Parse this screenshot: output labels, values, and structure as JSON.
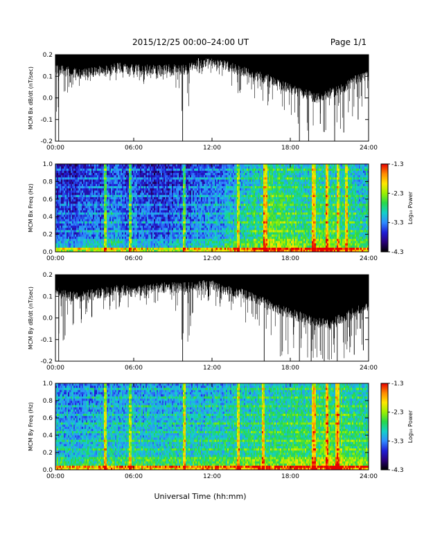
{
  "header": {
    "title": "2015/12/25  00:00–24:00 UT",
    "page": "Page 1/1"
  },
  "footer": {
    "xlabel": "Universal Time (hh:mm)"
  },
  "colors": {
    "trace": "#000000",
    "colormap": [
      "#000000",
      "#2a007a",
      "#1f1fd6",
      "#2f8cff",
      "#14d0c8",
      "#27d84a",
      "#9bf000",
      "#ffe600",
      "#ff8a00",
      "#e60000"
    ]
  },
  "chart_data": [
    {
      "type": "line",
      "ylabel": "MCM Bx dB/dt (nT/sec)",
      "xlim": [
        0,
        24
      ],
      "ylim": [
        -0.2,
        0.2
      ],
      "xticks": [
        "00:00",
        "06:00",
        "12:00",
        "18:00",
        "24:00"
      ],
      "yticks": [
        "0.2",
        "0.1",
        "0.0",
        "-0.1",
        "-0.2"
      ],
      "envelope": {
        "hours": [
          0,
          1,
          2,
          3,
          4,
          5,
          6,
          7,
          8,
          9,
          10,
          11,
          12,
          13,
          14,
          15,
          16,
          17,
          18,
          19,
          20,
          21,
          22,
          23,
          24
        ],
        "typical_low": [
          0.13,
          0.12,
          0.11,
          0.12,
          0.13,
          0.14,
          0.13,
          0.13,
          0.13,
          0.13,
          0.13,
          0.16,
          0.16,
          0.15,
          0.13,
          0.11,
          0.09,
          0.07,
          0.04,
          0.02,
          0.0,
          0.02,
          0.04,
          0.08,
          0.1
        ],
        "spike_min": [
          -0.2,
          0.04,
          0.05,
          0.06,
          0.08,
          0.07,
          0.08,
          0.06,
          0.08,
          0.1,
          -0.2,
          0.1,
          0.1,
          0.08,
          0.02,
          0.0,
          -0.03,
          -0.05,
          -0.12,
          -0.2,
          -0.2,
          -0.15,
          -0.2,
          -0.1,
          -0.05
        ]
      },
      "deep_spikes": [
        [
          0.25,
          -0.2
        ],
        [
          9.75,
          -0.2
        ],
        [
          18.7,
          -0.2
        ],
        [
          19.4,
          -0.2
        ],
        [
          20.3,
          -0.12
        ],
        [
          21.4,
          -0.2
        ],
        [
          22.1,
          -0.16
        ],
        [
          23.2,
          -0.1
        ]
      ]
    },
    {
      "type": "heatmap",
      "ylabel": "MCM Bx Freq (Hz)",
      "xlim": [
        0,
        24
      ],
      "ylim": [
        0,
        1.0
      ],
      "xticks": [
        "00:00",
        "06:00",
        "12:00",
        "18:00",
        "24:00"
      ],
      "yticks": [
        "1.0",
        "0.8",
        "0.6",
        "0.4",
        "0.2",
        "0.0"
      ],
      "colorbar": {
        "label": "Log₁₀ Power",
        "ticks": [
          "-1.3",
          "-2.3",
          "-3.3",
          "-4.3"
        ],
        "range": [
          -4.3,
          -1.3
        ]
      },
      "activity_by_hour": [
        0.25,
        0.25,
        0.3,
        0.3,
        0.35,
        0.3,
        0.3,
        0.25,
        0.25,
        0.3,
        0.3,
        0.35,
        0.35,
        0.4,
        0.45,
        0.5,
        0.55,
        0.55,
        0.5,
        0.5,
        0.55,
        0.5,
        0.5,
        0.45
      ],
      "bright_columns_hours": [
        3.8,
        5.7,
        9.9,
        14.0,
        16.1,
        19.8,
        20.8,
        21.7,
        22.3
      ]
    },
    {
      "type": "line",
      "ylabel": "MCM By dB/dt (nT/sec)",
      "xlim": [
        0,
        24
      ],
      "ylim": [
        -0.2,
        0.2
      ],
      "xticks": [
        "00:00",
        "06:00",
        "12:00",
        "18:00",
        "24:00"
      ],
      "yticks": [
        "0.2",
        "0.1",
        "0.0",
        "-0.1",
        "-0.2"
      ],
      "envelope": {
        "hours": [
          0,
          1,
          2,
          3,
          4,
          5,
          6,
          7,
          8,
          9,
          10,
          11,
          12,
          13,
          14,
          15,
          16,
          17,
          18,
          19,
          20,
          21,
          22,
          23,
          24
        ],
        "typical_low": [
          0.12,
          0.1,
          0.1,
          0.11,
          0.12,
          0.13,
          0.12,
          0.13,
          0.14,
          0.14,
          0.14,
          0.15,
          0.15,
          0.13,
          0.12,
          0.1,
          0.07,
          0.04,
          0.02,
          0.0,
          -0.02,
          -0.03,
          0.0,
          0.03,
          0.05
        ],
        "spike_min": [
          -0.2,
          -0.05,
          -0.03,
          0.0,
          0.03,
          0.04,
          0.05,
          0.06,
          0.07,
          0.08,
          -0.2,
          0.08,
          0.06,
          0.04,
          0.0,
          -0.05,
          -0.1,
          -0.2,
          -0.2,
          -0.18,
          -0.2,
          -0.2,
          -0.2,
          -0.15,
          -0.12
        ]
      },
      "deep_spikes": [
        [
          0.25,
          -0.2
        ],
        [
          9.75,
          -0.2
        ],
        [
          16.0,
          -0.2
        ],
        [
          18.7,
          -0.2
        ],
        [
          19.6,
          -0.2
        ],
        [
          20.6,
          -0.2
        ],
        [
          21.6,
          -0.2
        ],
        [
          22.9,
          -0.17
        ],
        [
          23.6,
          -0.15
        ]
      ]
    },
    {
      "type": "heatmap",
      "ylabel": "MCM By Freq (Hz)",
      "xlim": [
        0,
        24
      ],
      "ylim": [
        0,
        1.0
      ],
      "xticks": [
        "00:00",
        "06:00",
        "12:00",
        "18:00",
        "24:00"
      ],
      "yticks": [
        "1.0",
        "0.8",
        "0.6",
        "0.4",
        "0.2",
        "0.0"
      ],
      "colorbar": {
        "label": "Log₁₀ Power",
        "ticks": [
          "-1.3",
          "-2.3",
          "-3.3",
          "-4.3"
        ],
        "range": [
          -4.3,
          -1.3
        ]
      },
      "activity_by_hour": [
        0.4,
        0.4,
        0.4,
        0.42,
        0.42,
        0.42,
        0.42,
        0.42,
        0.42,
        0.42,
        0.44,
        0.45,
        0.45,
        0.47,
        0.48,
        0.5,
        0.5,
        0.5,
        0.52,
        0.52,
        0.55,
        0.55,
        0.52,
        0.5
      ],
      "bright_columns_hours": [
        3.8,
        5.7,
        9.9,
        14.0,
        15.9,
        19.8,
        20.8,
        21.6
      ]
    }
  ]
}
